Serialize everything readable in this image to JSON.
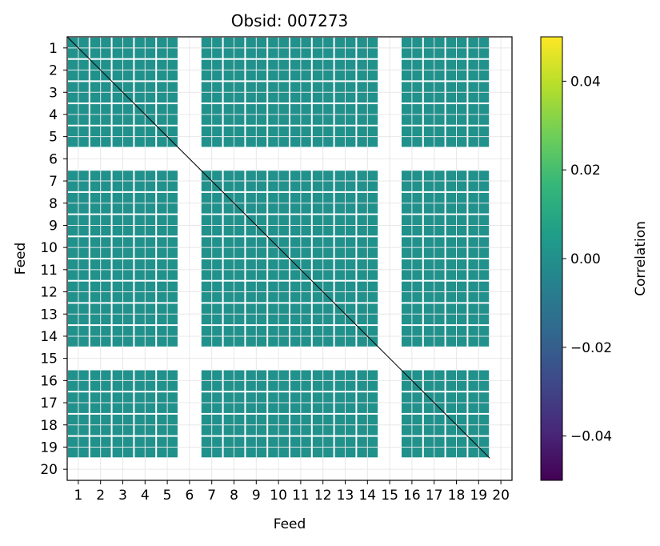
{
  "chart_data": {
    "type": "heatmap",
    "title": "Obsid: 007273",
    "xlabel": "Feed",
    "ylabel": "Feed",
    "x_ticks": [
      "1",
      "2",
      "3",
      "4",
      "5",
      "6",
      "7",
      "8",
      "9",
      "10",
      "11",
      "12",
      "13",
      "14",
      "15",
      "16",
      "17",
      "18",
      "19",
      "20"
    ],
    "y_ticks": [
      "1",
      "2",
      "3",
      "4",
      "5",
      "6",
      "7",
      "8",
      "9",
      "10",
      "11",
      "12",
      "13",
      "14",
      "15",
      "16",
      "17",
      "18",
      "19",
      "20"
    ],
    "active_feeds": [
      1,
      2,
      3,
      4,
      5,
      7,
      8,
      9,
      10,
      11,
      12,
      13,
      14,
      16,
      17,
      18,
      19
    ],
    "missing_feeds": [
      6,
      15,
      20
    ],
    "cell_value": 0.0,
    "grid": true,
    "colorbar": {
      "label": "Correlation",
      "vmin": -0.05,
      "vmax": 0.05,
      "ticks": [
        0.04,
        0.02,
        0.0,
        -0.02,
        -0.04
      ],
      "tick_labels": [
        "0.04",
        "0.02",
        "0.00",
        "−0.02",
        "−0.04"
      ],
      "colormap": "viridis",
      "stops": [
        "#440154",
        "#482878",
        "#3e4989",
        "#31688e",
        "#26828e",
        "#1f9e89",
        "#35b779",
        "#6ece58",
        "#b5de2b",
        "#fde725"
      ]
    },
    "colors": {
      "cell": "#21918c",
      "diagonal": "#000000",
      "grid": "#e8e8e8"
    }
  }
}
